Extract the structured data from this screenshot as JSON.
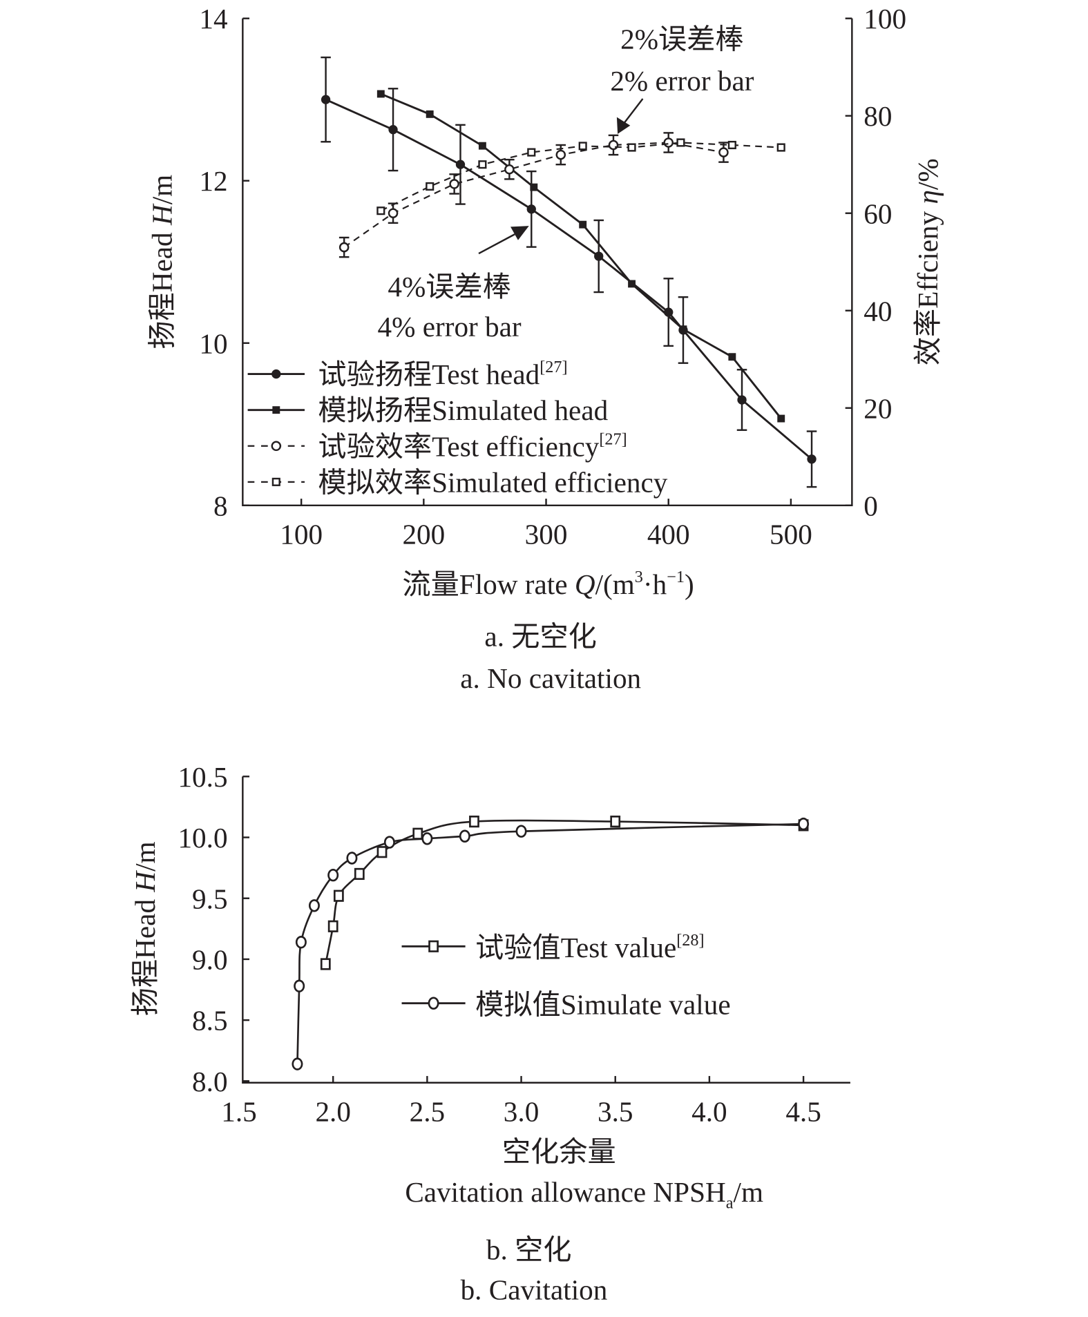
{
  "chart_data": [
    {
      "type": "line",
      "title": "",
      "caption_cn": "a.  无空化",
      "caption_en": "a.  No cavitation",
      "xlabel": {
        "prefix": "流量Flow rate ",
        "var": "Q",
        "unit_a": "/(m",
        "sup1": "3",
        "unit_b": "·h",
        "sup2": "−1",
        "unit_c": ")"
      },
      "ylabel_left": {
        "prefix": "扬程Head ",
        "var": "H",
        "unit": "/m"
      },
      "ylabel_right": {
        "prefix": "效率Effcieny ",
        "var": "η",
        "unit": "/%"
      },
      "xlim": [
        52,
        550
      ],
      "ylim_left": [
        8,
        14
      ],
      "ylim_right": [
        0,
        100
      ],
      "x_ticks": [
        "100",
        "200",
        "300",
        "400",
        "500"
      ],
      "y_left_ticks": [
        "8",
        "10",
        "12",
        "14"
      ],
      "y_right_ticks": [
        "0",
        "20",
        "40",
        "60",
        "80",
        "100"
      ],
      "annotations": [
        {
          "cn": "2%误差棒",
          "en": "2% error bar"
        },
        {
          "cn": "4%误差棒",
          "en": "4% error bar"
        }
      ],
      "legend_position": "bottom-left",
      "series": [
        {
          "name": "试验扬程Test head",
          "ref": "[27]",
          "axis": "left",
          "marker": "filled-circle",
          "dash": false,
          "error_pct": 4,
          "x": [
            120,
            175,
            230,
            288,
            343,
            400,
            412,
            460,
            517
          ],
          "y": [
            13.0,
            12.63,
            12.2,
            11.65,
            11.07,
            10.38,
            10.16,
            9.3,
            8.57
          ]
        },
        {
          "name": "模拟扬程Simulated head",
          "ref": "",
          "axis": "left",
          "marker": "filled-square",
          "dash": false,
          "x": [
            165,
            205,
            248,
            290,
            330,
            370,
            412,
            452,
            492
          ],
          "y": [
            13.07,
            12.82,
            12.43,
            11.92,
            11.46,
            10.73,
            10.17,
            9.83,
            9.07
          ]
        },
        {
          "name": "试验效率Test efficiency",
          "ref": "[27]",
          "axis": "right",
          "marker": "open-circle",
          "dash": true,
          "error_pct": 2,
          "x": [
            135,
            175,
            225,
            270,
            312,
            355,
            400,
            445
          ],
          "y": [
            53,
            60,
            66,
            69,
            72,
            74,
            74.5,
            72.5
          ]
        },
        {
          "name": "模拟效率Simulated efficiency",
          "ref": "",
          "axis": "right",
          "marker": "open-square",
          "dash": true,
          "x": [
            165,
            205,
            248,
            288,
            330,
            370,
            410,
            452,
            492
          ],
          "y": [
            60.5,
            65.5,
            70,
            72.5,
            73.8,
            73.5,
            74.5,
            74,
            73.5
          ]
        }
      ]
    },
    {
      "type": "line",
      "title": "",
      "caption_cn": "b.  空化",
      "caption_en": "b.  Cavitation",
      "xlabel_cn": "空化余量",
      "xlabel_en": {
        "prefix": "Cavitation allowance NPSH",
        "sub": "a",
        "unit": "/m"
      },
      "ylabel": {
        "prefix": "扬程Head ",
        "var": "H",
        "unit": "/m"
      },
      "xlim": [
        1.5,
        4.75
      ],
      "ylim": [
        8.0,
        10.5
      ],
      "x_ticks": [
        "1.5",
        "2.0",
        "2.5",
        "3.0",
        "3.5",
        "4.0",
        "4.5"
      ],
      "y_ticks": [
        "8.0",
        "8.5",
        "9.0",
        "9.5",
        "10.0",
        "10.5"
      ],
      "legend_position": "center-right",
      "series": [
        {
          "name": "试验值Test value",
          "ref": "[28]",
          "marker": "open-square",
          "x": [
            1.96,
            2.0,
            2.03,
            2.14,
            2.26,
            2.45,
            2.75,
            3.5,
            4.5
          ],
          "y": [
            8.96,
            9.27,
            9.52,
            9.7,
            9.88,
            10.03,
            10.13,
            10.13,
            10.1
          ]
        },
        {
          "name": "模拟值Simulate value",
          "ref": "",
          "marker": "open-circle",
          "x": [
            1.81,
            1.82,
            1.83,
            1.9,
            2.0,
            2.1,
            2.3,
            2.5,
            2.7,
            3.0,
            4.5
          ],
          "y": [
            8.14,
            8.78,
            9.14,
            9.44,
            9.69,
            9.83,
            9.96,
            9.99,
            10.01,
            10.05,
            10.11
          ]
        }
      ]
    }
  ]
}
